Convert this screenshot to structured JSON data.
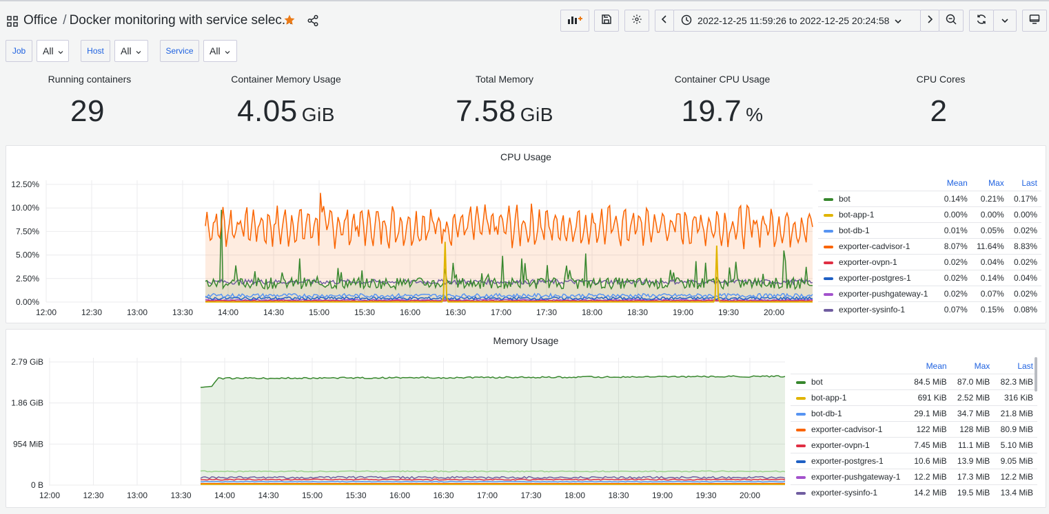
{
  "header": {
    "folder": "Office",
    "separator": "/",
    "dashboard_title": "Docker monitoring with service selec...",
    "time_range": "2022-12-25 11:59:26 to 2022-12-25 20:24:58",
    "icons": {
      "apps": "apps-icon",
      "star": "star-icon",
      "share": "share-icon",
      "add_panel": "add-panel-icon",
      "save": "save-icon",
      "settings": "gear-icon",
      "prev": "chevron-left-icon",
      "clock": "clock-icon",
      "chevron_down": "chevron-down-icon",
      "next": "chevron-right-icon",
      "zoom_out": "zoom-out-icon",
      "refresh": "refresh-icon",
      "refresh_menu": "chevron-down-icon",
      "tv": "tv-mode-icon"
    },
    "star_color": "#eb7b18"
  },
  "variables": [
    {
      "label": "Job",
      "value": "All"
    },
    {
      "label": "Host",
      "value": "All"
    },
    {
      "label": "Service",
      "value": "All"
    }
  ],
  "stats": [
    {
      "title": "Running containers",
      "value": "29",
      "unit": ""
    },
    {
      "title": "Container Memory Usage",
      "value": "4.05",
      "unit": "GiB"
    },
    {
      "title": "Total Memory",
      "value": "7.58",
      "unit": "GiB"
    },
    {
      "title": "Container CPU Usage",
      "value": "19.7",
      "unit": "%"
    },
    {
      "title": "CPU Cores",
      "value": "2",
      "unit": ""
    }
  ],
  "cpu_panel": {
    "title": "CPU Usage",
    "y_ticks": [
      "12.50%",
      "10.00%",
      "7.50%",
      "5.00%",
      "2.50%",
      "0.00%"
    ],
    "x_ticks": [
      "12:00",
      "12:30",
      "13:00",
      "13:30",
      "14:00",
      "14:30",
      "15:00",
      "15:30",
      "16:00",
      "16:30",
      "17:00",
      "17:30",
      "18:00",
      "18:30",
      "19:00",
      "19:30",
      "20:00"
    ],
    "legend_headers": [
      "Mean",
      "Max",
      "Last"
    ],
    "legend": [
      {
        "name": "bot",
        "color": "#37872d",
        "mean": "0.14%",
        "max": "0.21%",
        "last": "0.17%"
      },
      {
        "name": "bot-app-1",
        "color": "#e0b400",
        "mean": "0.00%",
        "max": "0.00%",
        "last": "0.00%"
      },
      {
        "name": "bot-db-1",
        "color": "#5794f2",
        "mean": "0.01%",
        "max": "0.05%",
        "last": "0.02%"
      },
      {
        "name": "exporter-cadvisor-1",
        "color": "#fa6400",
        "mean": "8.07%",
        "max": "11.64%",
        "last": "8.83%"
      },
      {
        "name": "exporter-ovpn-1",
        "color": "#e02f44",
        "mean": "0.02%",
        "max": "0.04%",
        "last": "0.02%"
      },
      {
        "name": "exporter-postgres-1",
        "color": "#1f60c4",
        "mean": "0.02%",
        "max": "0.14%",
        "last": "0.04%"
      },
      {
        "name": "exporter-pushgateway-1",
        "color": "#a352cc",
        "mean": "0.02%",
        "max": "0.07%",
        "last": "0.02%"
      },
      {
        "name": "exporter-sysinfo-1",
        "color": "#705da0",
        "mean": "0.07%",
        "max": "0.15%",
        "last": "0.08%"
      }
    ]
  },
  "memory_panel": {
    "title": "Memory Usage",
    "y_ticks": [
      "2.79 GiB",
      "1.86 GiB",
      "954 MiB",
      "0 B"
    ],
    "x_ticks": [
      "12:00",
      "12:30",
      "13:00",
      "13:30",
      "14:00",
      "14:30",
      "15:00",
      "15:30",
      "16:00",
      "16:30",
      "17:00",
      "17:30",
      "18:00",
      "18:30",
      "19:00",
      "19:30",
      "20:00"
    ],
    "legend_headers": [
      "Mean",
      "Max",
      "Last"
    ],
    "legend": [
      {
        "name": "bot",
        "color": "#37872d",
        "mean": "84.5 MiB",
        "max": "87.0 MiB",
        "last": "82.3 MiB"
      },
      {
        "name": "bot-app-1",
        "color": "#e0b400",
        "mean": "691 KiB",
        "max": "2.52 MiB",
        "last": "316 KiB"
      },
      {
        "name": "bot-db-1",
        "color": "#5794f2",
        "mean": "29.1 MiB",
        "max": "34.7 MiB",
        "last": "21.8 MiB"
      },
      {
        "name": "exporter-cadvisor-1",
        "color": "#fa6400",
        "mean": "122 MiB",
        "max": "128 MiB",
        "last": "80.9 MiB"
      },
      {
        "name": "exporter-ovpn-1",
        "color": "#e02f44",
        "mean": "7.45 MiB",
        "max": "11.1 MiB",
        "last": "5.10 MiB"
      },
      {
        "name": "exporter-postgres-1",
        "color": "#1f60c4",
        "mean": "10.6 MiB",
        "max": "13.9 MiB",
        "last": "9.05 MiB"
      },
      {
        "name": "exporter-pushgateway-1",
        "color": "#a352cc",
        "mean": "12.2 MiB",
        "max": "17.3 MiB",
        "last": "12.2 MiB"
      },
      {
        "name": "exporter-sysinfo-1",
        "color": "#705da0",
        "mean": "14.2 MiB",
        "max": "19.5 MiB",
        "last": "13.4 MiB"
      }
    ]
  }
}
